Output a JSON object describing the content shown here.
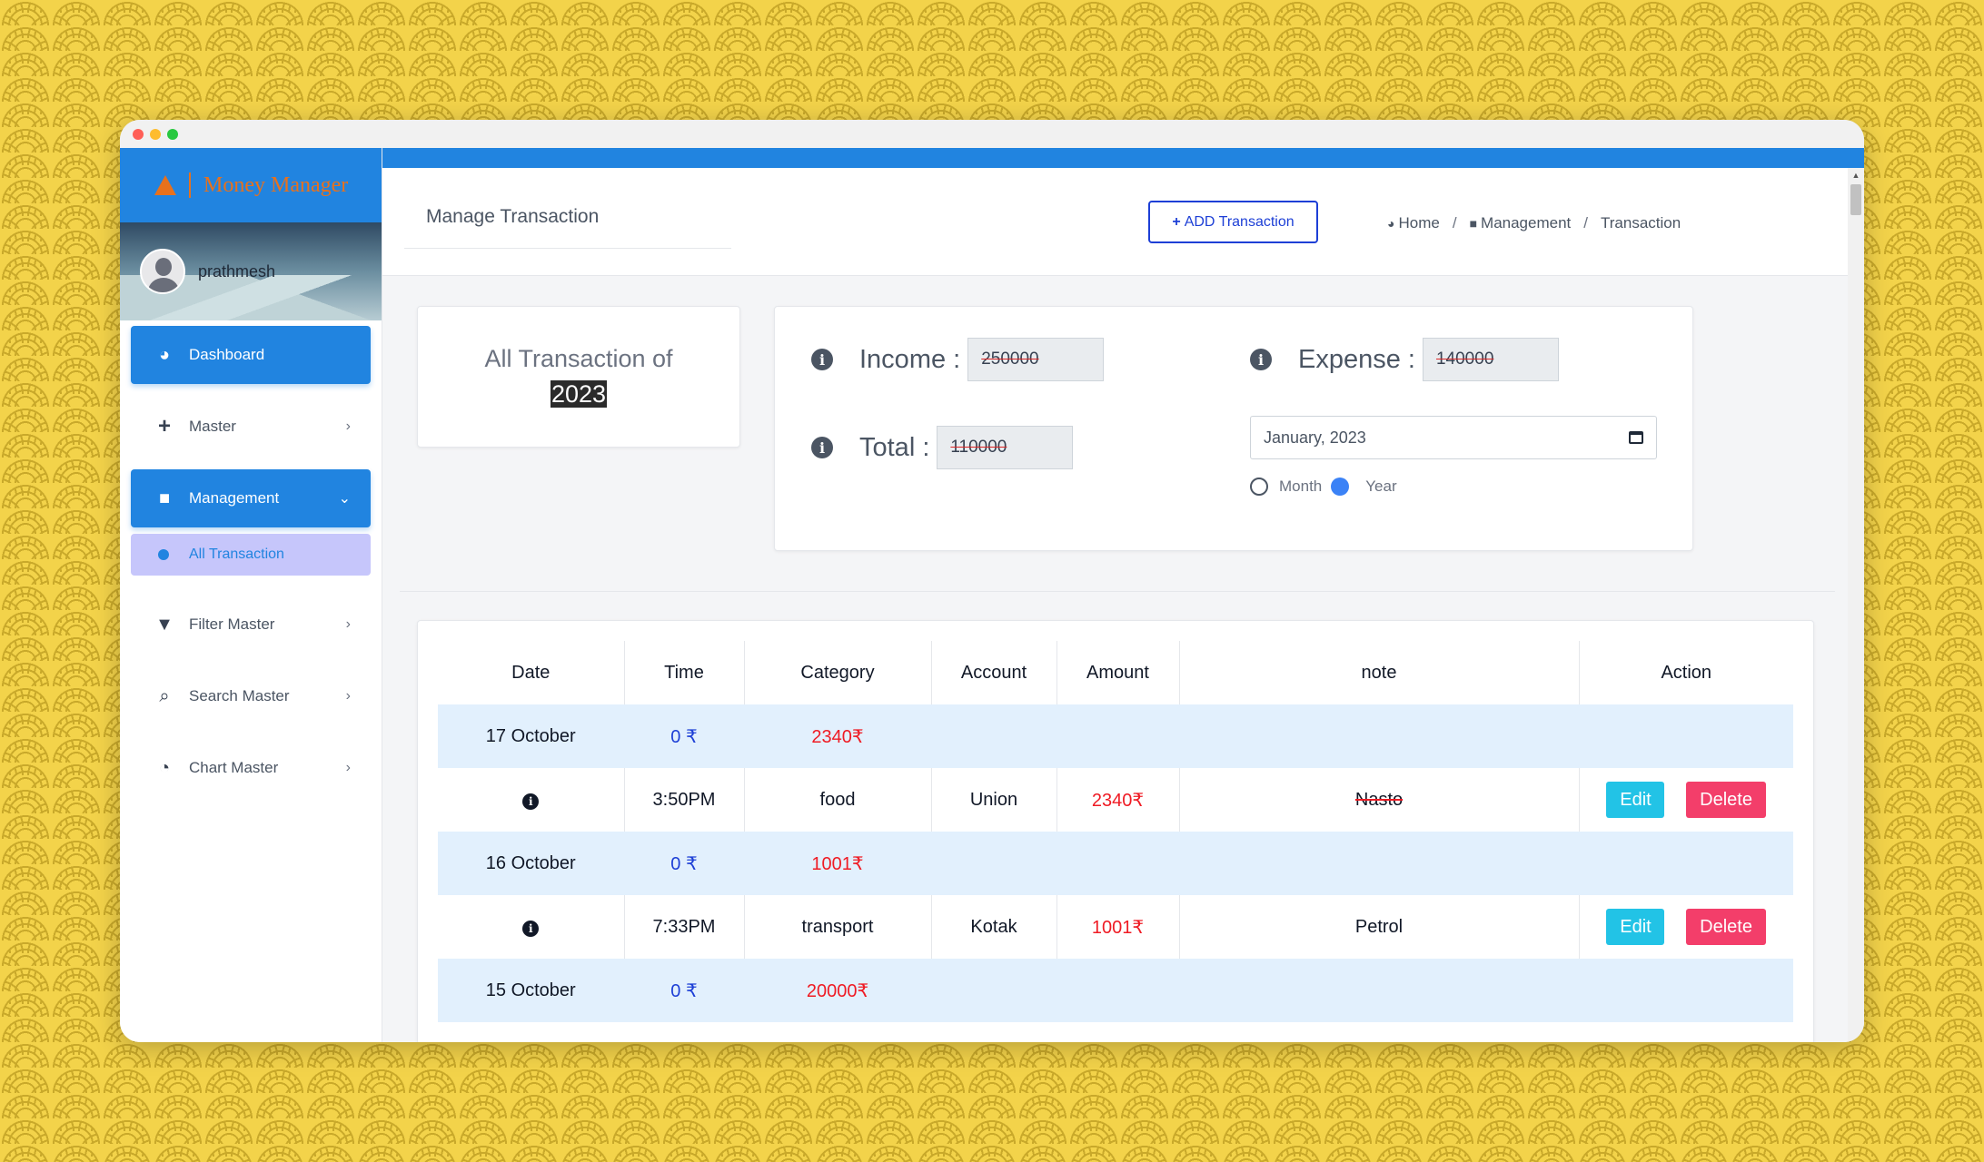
{
  "app": {
    "brand_name": "Money Manager",
    "user_name": "prathmesh"
  },
  "colors": {
    "primary": "#2184e0",
    "accent": "#e8711c",
    "expense_red": "#ef1b24",
    "income_blue": "#1d3fd6"
  },
  "sidebar": {
    "items": [
      {
        "label": "Dashboard",
        "icon": "palette-icon"
      },
      {
        "label": "Master",
        "icon": "plus-icon"
      },
      {
        "label": "Management",
        "icon": "file-icon"
      },
      {
        "label": "Filter Master",
        "icon": "filter-icon"
      },
      {
        "label": "Search Master",
        "icon": "search-icon"
      },
      {
        "label": "Chart Master",
        "icon": "pie-chart-icon"
      }
    ],
    "sub_item": "All Transaction"
  },
  "header": {
    "title": "Manage Transaction",
    "add_button": "ADD Transaction",
    "breadcrumb": [
      "Home",
      "Management",
      "Transaction"
    ]
  },
  "summary": {
    "caption": "All Transaction of",
    "year": "2023",
    "income_label": "Income :",
    "income_value": "250000",
    "expense_label": "Expense :",
    "expense_value": "140000",
    "total_label": "Total :",
    "total_value": "110000",
    "date_value": "January, 2023",
    "radio_month": "Month",
    "radio_year": "Year",
    "selected_period": "Year"
  },
  "table": {
    "headers": [
      "Date",
      "Time",
      "Category",
      "Account",
      "Amount",
      "note",
      "Action"
    ],
    "edit_label": "Edit",
    "delete_label": "Delete",
    "rows": [
      {
        "type": "day",
        "date": "17 October",
        "income": "0 ₹",
        "expense": "2340₹"
      },
      {
        "type": "txn",
        "time": "3:50PM",
        "category": "food",
        "account": "Union",
        "amount": "2340₹",
        "note": "Nasto"
      },
      {
        "type": "day",
        "date": "16 October",
        "income": "0 ₹",
        "expense": "1001₹"
      },
      {
        "type": "txn",
        "time": "7:33PM",
        "category": "transport",
        "account": "Kotak",
        "amount": "1001₹",
        "note": "Petrol"
      },
      {
        "type": "day",
        "date": "15 October",
        "income": "0 ₹",
        "expense": "20000₹"
      }
    ]
  }
}
